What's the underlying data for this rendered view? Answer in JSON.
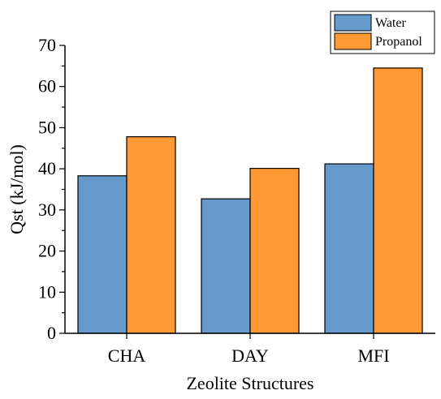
{
  "chart_data": {
    "type": "bar",
    "categories": [
      "CHA",
      "DAY",
      "MFI"
    ],
    "series": [
      {
        "name": "Water",
        "values": [
          38.3,
          32.7,
          41.2
        ],
        "color": "#6699CC"
      },
      {
        "name": "Propanol",
        "values": [
          47.8,
          40.1,
          64.5
        ],
        "color": "#FF9933"
      }
    ],
    "xlabel": "Zeolite Structures",
    "ylabel": "Qst (kJ/mol)",
    "ylim": [
      0,
      70
    ],
    "yticks": [
      0,
      10,
      20,
      30,
      40,
      50,
      60,
      70
    ],
    "grid": false,
    "legend_position": "top-right"
  }
}
